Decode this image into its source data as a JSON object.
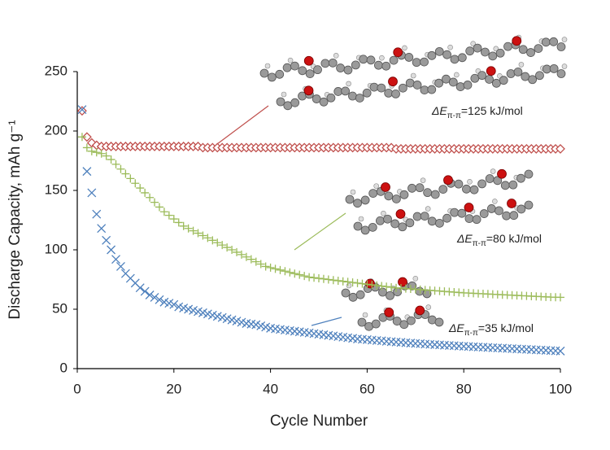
{
  "chart_data": {
    "type": "scatter",
    "xlabel": "Cycle Number",
    "ylabel": "Discharge Capacity, mAh g⁻¹",
    "xlim": [
      0,
      100
    ],
    "xticks": [
      0,
      20,
      40,
      60,
      80,
      100
    ],
    "ylim": [
      0,
      250
    ],
    "yticks": [
      0,
      50,
      100,
      150,
      200,
      250
    ],
    "grid": false,
    "x": [
      1,
      2,
      3,
      4,
      5,
      6,
      7,
      8,
      9,
      10,
      11,
      12,
      13,
      14,
      15,
      16,
      17,
      18,
      19,
      20,
      21,
      22,
      23,
      24,
      25,
      26,
      27,
      28,
      29,
      30,
      31,
      32,
      33,
      34,
      35,
      36,
      37,
      38,
      39,
      40,
      41,
      42,
      43,
      44,
      45,
      46,
      47,
      48,
      49,
      50,
      51,
      52,
      53,
      54,
      55,
      56,
      57,
      58,
      59,
      60,
      61,
      62,
      63,
      64,
      65,
      66,
      67,
      68,
      69,
      70,
      71,
      72,
      73,
      74,
      75,
      76,
      77,
      78,
      79,
      80,
      81,
      82,
      83,
      84,
      85,
      86,
      87,
      88,
      89,
      90,
      91,
      92,
      93,
      94,
      95,
      96,
      97,
      98,
      99,
      100
    ],
    "series": [
      {
        "color": "#c0504d",
        "marker": "diamond",
        "values": [
          217,
          195,
          190,
          188,
          187,
          187,
          187,
          187,
          187,
          187,
          187,
          187,
          187,
          187,
          187,
          187,
          187,
          187,
          187,
          187,
          187,
          187,
          187,
          187,
          187,
          186,
          186,
          186,
          186,
          186,
          186,
          186,
          186,
          186,
          186,
          186,
          186,
          186,
          186,
          186,
          186,
          186,
          186,
          186,
          186,
          186,
          186,
          186,
          186,
          186,
          186,
          186,
          186,
          186,
          186,
          186,
          186,
          186,
          186,
          186,
          186,
          186,
          186,
          186,
          186,
          185,
          185,
          185,
          185,
          185,
          185,
          185,
          185,
          185,
          185,
          185,
          185,
          185,
          185,
          185,
          185,
          185,
          185,
          185,
          185,
          185,
          185,
          185,
          185,
          185,
          185,
          185,
          185,
          185,
          185,
          185,
          185,
          185,
          185,
          185
        ]
      },
      {
        "color": "#9bbb59",
        "marker": "plus",
        "values": [
          195,
          186,
          183,
          182,
          181,
          179,
          176,
          172,
          168,
          164,
          160,
          156,
          152,
          148,
          144,
          140,
          136,
          132,
          129,
          126,
          123,
          120,
          118,
          116,
          114,
          112,
          110,
          108,
          106,
          104,
          102,
          100,
          98,
          96,
          94,
          92,
          90,
          88,
          86,
          85,
          84,
          83,
          82,
          81,
          80,
          79,
          78,
          77,
          76.5,
          76,
          75.5,
          75,
          74.5,
          74,
          73.5,
          73,
          72.5,
          72,
          71.5,
          71,
          70.5,
          70,
          69.5,
          69,
          68.5,
          68,
          67.7,
          67.4,
          67.1,
          66.8,
          66.5,
          66.2,
          65.9,
          65.6,
          65.3,
          65,
          64.7,
          64.4,
          64.1,
          63.8,
          63.6,
          63.4,
          63.2,
          63,
          62.8,
          62.6,
          62.4,
          62.2,
          62,
          61.8,
          61.6,
          61.4,
          61.2,
          61,
          60.8,
          60.6,
          60.4,
          60.2,
          60.1,
          60
        ]
      },
      {
        "color": "#4f81bd",
        "marker": "cross",
        "values": [
          218,
          166,
          148,
          130,
          118,
          108,
          100,
          92,
          86,
          80,
          76,
          72,
          68,
          65,
          62,
          60,
          58,
          56,
          55,
          54,
          52,
          51,
          50,
          49,
          48,
          47,
          46,
          45,
          44,
          43,
          42,
          41,
          40,
          39,
          38,
          37.5,
          37,
          36,
          35,
          34,
          33.5,
          33,
          32.5,
          32,
          31.5,
          31,
          30.5,
          30,
          29.5,
          29,
          28.5,
          28,
          27.5,
          27,
          26.5,
          26,
          25.5,
          25,
          24.7,
          24.4,
          24,
          23.7,
          23.4,
          23,
          22.7,
          22.4,
          22.1,
          21.8,
          21.5,
          21.2,
          21,
          20.7,
          20.4,
          20.2,
          20,
          19.7,
          19.5,
          19.3,
          19,
          18.8,
          18.6,
          18.4,
          18.2,
          18,
          17.8,
          17.6,
          17.4,
          17.2,
          17,
          16.8,
          16.6,
          16.4,
          16.2,
          16,
          15.8,
          15.6,
          15.4,
          15.2,
          15,
          14.8
        ]
      }
    ],
    "annotations": [
      {
        "symbol": "ΔE",
        "subscript": "π-π",
        "text": "=125 kJ/mol"
      },
      {
        "symbol": "ΔE",
        "subscript": "π-π",
        "text": "=80 kJ/mol"
      },
      {
        "symbol": "ΔE",
        "subscript": "π-π",
        "text": "=35 kJ/mol"
      }
    ]
  }
}
